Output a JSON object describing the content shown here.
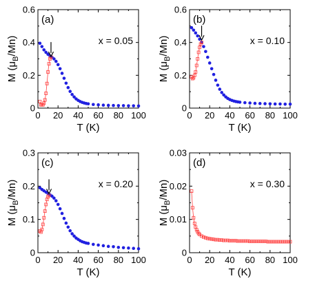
{
  "figure": {
    "panel_count": 4
  },
  "colors": {
    "fc_series": "#ff4040",
    "zfc_series": "#2020e0",
    "axis": "#000000"
  },
  "chart_data": [
    {
      "type": "scatter",
      "panel_label": "(a)",
      "annotation": "x = 0.05",
      "xlabel": "T (K)",
      "ylabel": "M (μ_B/Mn)",
      "xlim": [
        0,
        100
      ],
      "ylim": [
        0,
        0.6
      ],
      "xticks": [
        0,
        20,
        40,
        60,
        80,
        100
      ],
      "yticks": [
        0,
        0.2,
        0.4,
        0.6
      ],
      "ytick_labels": [
        "0",
        "0.2",
        "0.4",
        "0.6"
      ],
      "arrow_at": {
        "x": 13,
        "y": 0.31
      },
      "series": [
        {
          "marker": "filled-circle",
          "color": "#2020e0",
          "x": [
            2,
            4,
            6,
            8,
            10,
            12,
            14,
            16,
            18,
            20,
            22,
            24,
            26,
            28,
            30,
            32,
            34,
            36,
            38,
            40,
            42,
            44,
            46,
            48,
            50,
            55,
            60,
            65,
            70,
            75,
            80,
            85,
            90,
            95,
            100
          ],
          "y": [
            0.395,
            0.375,
            0.355,
            0.34,
            0.328,
            0.318,
            0.31,
            0.3,
            0.285,
            0.265,
            0.24,
            0.212,
            0.182,
            0.152,
            0.125,
            0.102,
            0.083,
            0.068,
            0.056,
            0.047,
            0.04,
            0.035,
            0.031,
            0.028,
            0.026,
            0.022,
            0.02,
            0.018,
            0.017,
            0.016,
            0.015,
            0.015,
            0.014,
            0.014,
            0.013
          ]
        },
        {
          "marker": "open-square",
          "color": "#ff4040",
          "x": [
            2,
            3,
            4,
            5,
            6,
            7,
            8,
            9,
            10,
            11,
            12,
            13
          ],
          "y": [
            0.04,
            0.02,
            0.02,
            0.02,
            0.03,
            0.05,
            0.09,
            0.15,
            0.22,
            0.27,
            0.3,
            0.31
          ]
        }
      ]
    },
    {
      "type": "scatter",
      "panel_label": "(b)",
      "annotation": "x = 0.10",
      "xlabel": "T (K)",
      "ylabel": "M (μ_B/Mn)",
      "xlim": [
        0,
        100
      ],
      "ylim": [
        0,
        0.6
      ],
      "xticks": [
        0,
        20,
        40,
        60,
        80,
        100
      ],
      "yticks": [
        0,
        0.2,
        0.4,
        0.6
      ],
      "ytick_labels": [
        "0",
        "0.2",
        "0.4",
        "0.6"
      ],
      "arrow_at": {
        "x": 12,
        "y": 0.41
      },
      "series": [
        {
          "marker": "filled-circle",
          "color": "#2020e0",
          "x": [
            2,
            4,
            6,
            8,
            10,
            12,
            14,
            16,
            18,
            20,
            22,
            24,
            26,
            28,
            30,
            32,
            34,
            36,
            38,
            40,
            42,
            44,
            46,
            48,
            50,
            55,
            60,
            65,
            70,
            75,
            80,
            85,
            90,
            95,
            100
          ],
          "y": [
            0.49,
            0.475,
            0.458,
            0.44,
            0.42,
            0.4,
            0.375,
            0.345,
            0.31,
            0.275,
            0.24,
            0.205,
            0.17,
            0.14,
            0.115,
            0.095,
            0.08,
            0.068,
            0.059,
            0.052,
            0.047,
            0.043,
            0.04,
            0.038,
            0.036,
            0.033,
            0.031,
            0.029,
            0.028,
            0.027,
            0.026,
            0.025,
            0.025,
            0.024,
            0.024
          ]
        },
        {
          "marker": "open-square",
          "color": "#ff4040",
          "x": [
            2,
            3,
            4,
            5,
            6,
            7,
            8,
            9,
            10,
            11,
            12
          ],
          "y": [
            0.19,
            0.18,
            0.185,
            0.2,
            0.22,
            0.26,
            0.3,
            0.34,
            0.37,
            0.39,
            0.4
          ]
        }
      ]
    },
    {
      "type": "scatter",
      "panel_label": "(c)",
      "annotation": "x = 0.20",
      "xlabel": "T (K)",
      "ylabel": "M (μ_B/Mn)",
      "xlim": [
        0,
        100
      ],
      "ylim": [
        0,
        0.3
      ],
      "xticks": [
        0,
        20,
        40,
        60,
        80,
        100
      ],
      "yticks": [
        0,
        0.1,
        0.2,
        0.3
      ],
      "ytick_labels": [
        "0",
        "0.1",
        "0.2",
        "0.3"
      ],
      "arrow_at": {
        "x": 11,
        "y": 0.175
      },
      "series": [
        {
          "marker": "filled-circle",
          "color": "#2020e0",
          "x": [
            2,
            4,
            6,
            8,
            10,
            12,
            14,
            16,
            18,
            20,
            22,
            24,
            26,
            28,
            30,
            32,
            34,
            36,
            38,
            40,
            42,
            44,
            46,
            48,
            50,
            55,
            60,
            65,
            70,
            75,
            80,
            85,
            90,
            95,
            100
          ],
          "y": [
            0.195,
            0.19,
            0.186,
            0.182,
            0.178,
            0.174,
            0.17,
            0.164,
            0.156,
            0.145,
            0.132,
            0.118,
            0.103,
            0.089,
            0.077,
            0.066,
            0.057,
            0.05,
            0.044,
            0.04,
            0.036,
            0.033,
            0.031,
            0.029,
            0.028,
            0.025,
            0.023,
            0.021,
            0.019,
            0.018,
            0.016,
            0.015,
            0.014,
            0.013,
            0.012
          ]
        },
        {
          "marker": "open-square",
          "color": "#ff4040",
          "x": [
            2,
            3,
            4,
            5,
            6,
            7,
            8,
            9,
            10,
            11
          ],
          "y": [
            0.065,
            0.062,
            0.07,
            0.085,
            0.105,
            0.125,
            0.145,
            0.16,
            0.168,
            0.172
          ]
        }
      ]
    },
    {
      "type": "scatter",
      "panel_label": "(d)",
      "annotation": "x = 0.30",
      "xlabel": "T (K)",
      "ylabel": "M (μ_B/Mn)",
      "xlim": [
        0,
        100
      ],
      "ylim": [
        0,
        0.03
      ],
      "xticks": [
        0,
        20,
        40,
        60,
        80,
        100
      ],
      "yticks": [
        0,
        0.01,
        0.02,
        0.03
      ],
      "ytick_labels": [
        "0",
        "0.01",
        "0.02",
        "0.03"
      ],
      "series": [
        {
          "marker": "open-square",
          "color": "#ff4040",
          "x": [
            2,
            3,
            4,
            5,
            6,
            7,
            8,
            9,
            10,
            12,
            14,
            16,
            18,
            20,
            22,
            24,
            26,
            28,
            30,
            32,
            34,
            36,
            38,
            40,
            42,
            44,
            46,
            48,
            50,
            52,
            54,
            56,
            58,
            60,
            62,
            64,
            66,
            68,
            70,
            72,
            74,
            76,
            78,
            80,
            82,
            84,
            86,
            88,
            90,
            92,
            94,
            96,
            98,
            100
          ],
          "y": [
            0.0185,
            0.0135,
            0.0105,
            0.0088,
            0.0077,
            0.0069,
            0.0063,
            0.0058,
            0.0055,
            0.005,
            0.0047,
            0.0045,
            0.0043,
            0.0042,
            0.0041,
            0.004,
            0.0039,
            0.0039,
            0.0038,
            0.0038,
            0.0037,
            0.0037,
            0.0037,
            0.0036,
            0.0036,
            0.0036,
            0.0036,
            0.0035,
            0.0035,
            0.0035,
            0.0035,
            0.0035,
            0.0035,
            0.0034,
            0.0034,
            0.0034,
            0.0034,
            0.0034,
            0.0034,
            0.0034,
            0.0034,
            0.0034,
            0.0033,
            0.0033,
            0.0033,
            0.0033,
            0.0033,
            0.0033,
            0.0033,
            0.0033,
            0.0033,
            0.0033,
            0.0033,
            0.0033
          ]
        }
      ]
    }
  ]
}
